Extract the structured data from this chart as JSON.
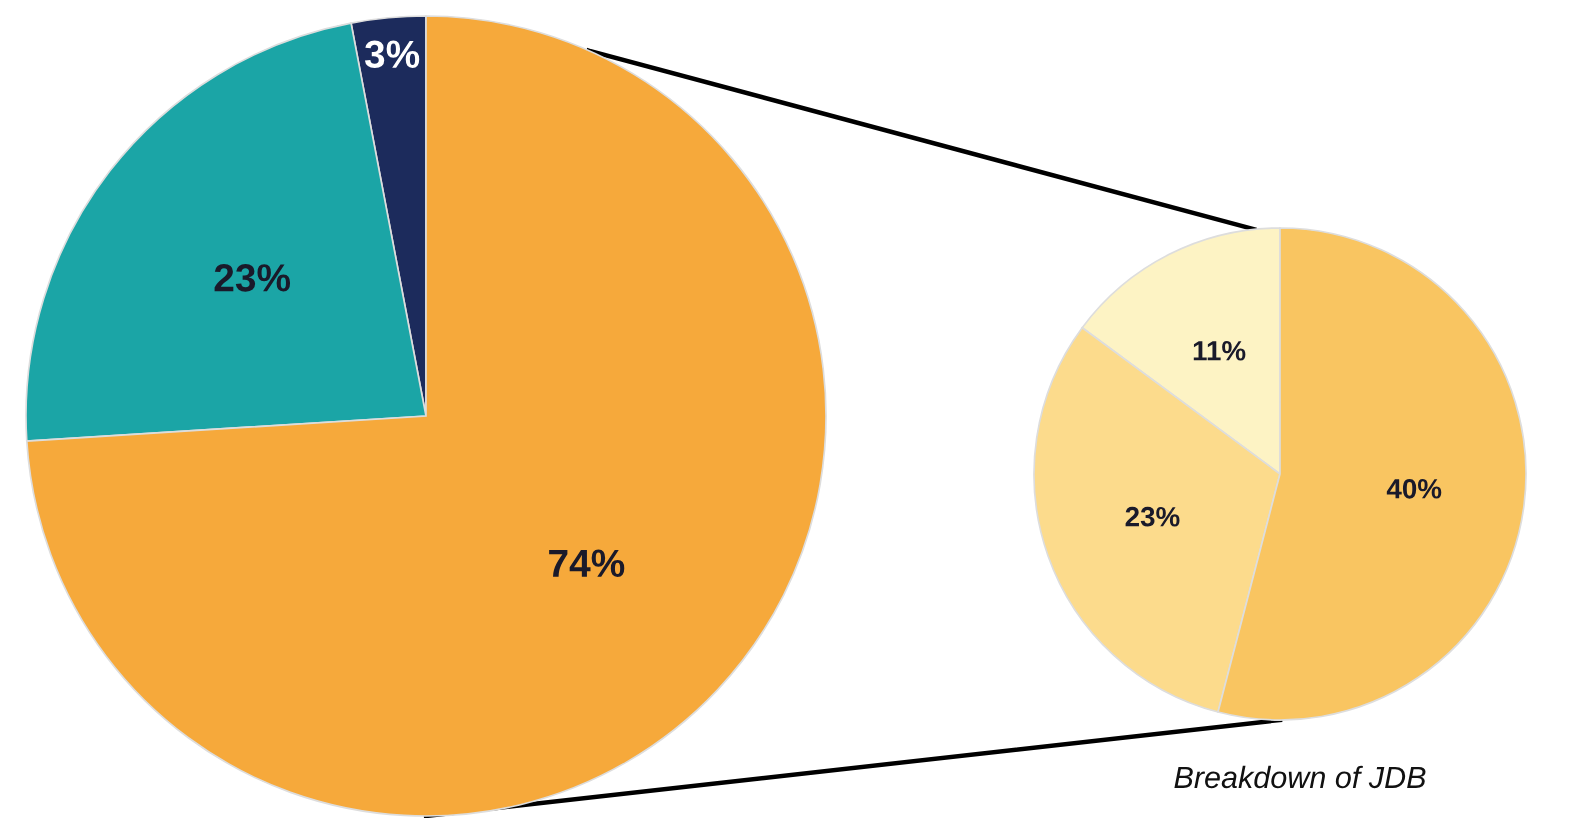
{
  "chart_data": [
    {
      "type": "pie",
      "categories": [
        null,
        null,
        null
      ],
      "values": [
        3,
        23,
        74
      ],
      "colors": [
        "#1c2b5c",
        "#1ba5a6",
        "#f6a93b"
      ],
      "value_labels": [
        "3%",
        "23%",
        "74%"
      ]
    },
    {
      "type": "pie",
      "categories": [
        null,
        null,
        null
      ],
      "values": [
        11,
        23,
        40
      ],
      "colors": [
        "#fdf3c4",
        "#fcdb8c",
        "#f9c561"
      ],
      "value_labels": [
        "11%",
        "23%",
        "40%"
      ],
      "annotations": [
        "Breakdown of JDB"
      ]
    }
  ]
}
